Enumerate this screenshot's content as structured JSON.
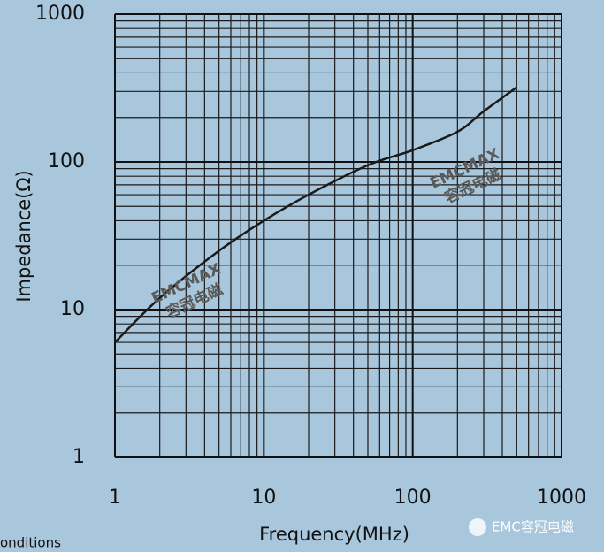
{
  "chart_data": {
    "type": "line",
    "x_label": "Frequency(MHz)",
    "y_label": "Impedance(Ω)",
    "x": [
      1,
      2,
      5,
      10,
      20,
      50,
      100,
      200,
      300,
      500
    ],
    "values": [
      6,
      12,
      25,
      40,
      60,
      95,
      120,
      160,
      220,
      320
    ],
    "color": "#1a1a1a",
    "x_scale": "log",
    "y_scale": "log",
    "xlim": [
      1,
      1000
    ],
    "ylim": [
      1,
      1000
    ],
    "xticks": [
      1,
      10,
      100,
      1000
    ],
    "yticks": [
      1,
      10,
      100,
      1000
    ],
    "grid": true,
    "minor_grid": true,
    "annotations": [
      "EMCMAX",
      "容冠电磁",
      "EMCMAX",
      "容冠电磁"
    ],
    "footer_left": "onditions",
    "footer_right": "EMC容冠电磁"
  }
}
